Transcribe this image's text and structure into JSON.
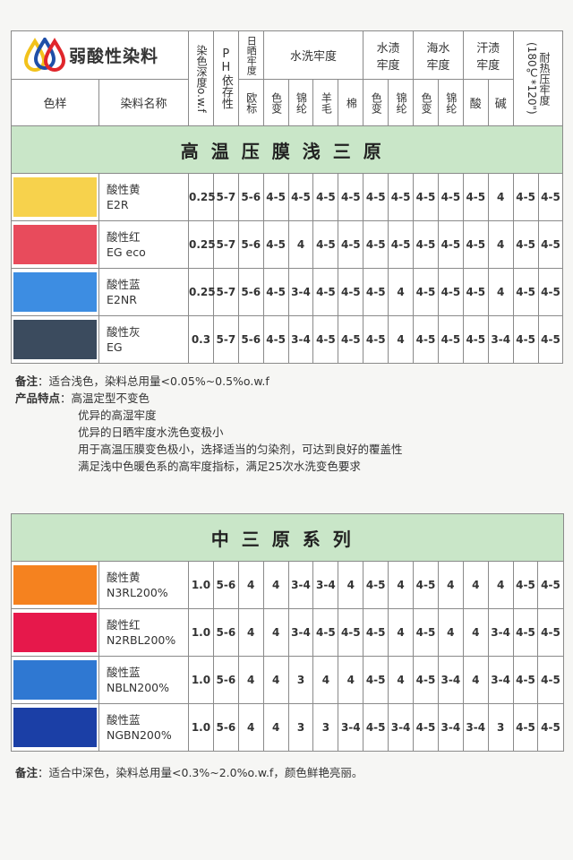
{
  "header": {
    "title": "弱酸性染料",
    "depth": "染色深度o.w.f",
    "ph": "PH依存性",
    "light": "日晒牢度",
    "light_sub": "欧标",
    "wash": "水洗牢度",
    "wash_sub": [
      "色变",
      "锦纶",
      "羊毛",
      "棉"
    ],
    "water": "水渍牢度",
    "water_sub": [
      "色变",
      "锦纶"
    ],
    "sea": "海水牢度",
    "sea_sub": [
      "色变",
      "锦纶"
    ],
    "sweat": "汗渍牢度",
    "sweat_sub": [
      "酸",
      "碱"
    ],
    "heat": "耐热压牢度(180℃*120\")",
    "swatch": "色样",
    "name": "染料名称"
  },
  "colors": {
    "band": "#c9e6c8",
    "logo": [
      "#f2c21b",
      "#1f4fa8",
      "#e0262b"
    ]
  },
  "section1": {
    "title": "高温压膜浅三原",
    "rows": [
      {
        "color": "#f7d24c",
        "name": "酸性黄",
        "code": "E2R",
        "values": [
          "0.25",
          "5-7",
          "5-6",
          "4-5",
          "4-5",
          "4-5",
          "4-5",
          "4-5",
          "4-5",
          "4-5",
          "4-5",
          "4-5",
          "4",
          "4-5",
          "4-5"
        ]
      },
      {
        "color": "#e84b5c",
        "name": "酸性红",
        "code": "EG eco",
        "values": [
          "0.25",
          "5-7",
          "5-6",
          "4-5",
          "4",
          "4-5",
          "4-5",
          "4-5",
          "4-5",
          "4-5",
          "4-5",
          "4-5",
          "4",
          "4-5",
          "4-5"
        ]
      },
      {
        "color": "#3d8de2",
        "name": "酸性蓝",
        "code": "E2NR",
        "values": [
          "0.25",
          "5-7",
          "5-6",
          "4-5",
          "3-4",
          "4-5",
          "4-5",
          "4-5",
          "4",
          "4-5",
          "4-5",
          "4-5",
          "4",
          "4-5",
          "4-5"
        ]
      },
      {
        "color": "#3b4b5e",
        "name": "酸性灰",
        "code": "EG",
        "values": [
          "0.3",
          "5-7",
          "5-6",
          "4-5",
          "3-4",
          "4-5",
          "4-5",
          "4-5",
          "4",
          "4-5",
          "4-5",
          "4-5",
          "3-4",
          "4-5",
          "4-5"
        ]
      }
    ],
    "note_label": "备注",
    "note": "：适合浅色，染料总用量<0.05%~0.5%o.w.f",
    "features_label": "产品特点",
    "features": [
      "高温定型不变色",
      "优异的高湿牢度",
      "优异的日晒牢度水洗色变极小",
      "用于高温压膜变色极小，选择适当的匀染剂，可达到良好的覆盖性",
      "满足浅中色暖色系的高牢度指标，满足25次水洗变色要求"
    ]
  },
  "section2": {
    "title": "中三原系列",
    "rows": [
      {
        "color": "#f5821f",
        "name": "酸性黄",
        "code": "N3RL200%",
        "values": [
          "1.0",
          "5-6",
          "4",
          "4",
          "3-4",
          "3-4",
          "4",
          "4-5",
          "4",
          "4-5",
          "4",
          "4",
          "4",
          "4-5",
          "4-5"
        ]
      },
      {
        "color": "#e6184b",
        "name": "酸性红",
        "code": "N2RBL200%",
        "values": [
          "1.0",
          "5-6",
          "4",
          "4",
          "3-4",
          "4-5",
          "4-5",
          "4-5",
          "4",
          "4-5",
          "4",
          "4",
          "3-4",
          "4-5",
          "4-5"
        ]
      },
      {
        "color": "#2f78d2",
        "name": "酸性蓝",
        "code": "NBLN200%",
        "values": [
          "1.0",
          "5-6",
          "4",
          "4",
          "3",
          "4",
          "4",
          "4-5",
          "4",
          "4-5",
          "3-4",
          "4",
          "3-4",
          "4-5",
          "4-5"
        ]
      },
      {
        "color": "#1b3fa6",
        "name": "酸性蓝",
        "code": "NGBN200%",
        "values": [
          "1.0",
          "5-6",
          "4",
          "4",
          "3",
          "3",
          "3-4",
          "4-5",
          "3-4",
          "4-5",
          "3-4",
          "3-4",
          "3",
          "4-5",
          "4-5"
        ]
      }
    ],
    "note_label": "备注",
    "note": "：适合中深色，染料总用量<0.3%~2.0%o.w.f，颜色鲜艳亮丽。"
  }
}
